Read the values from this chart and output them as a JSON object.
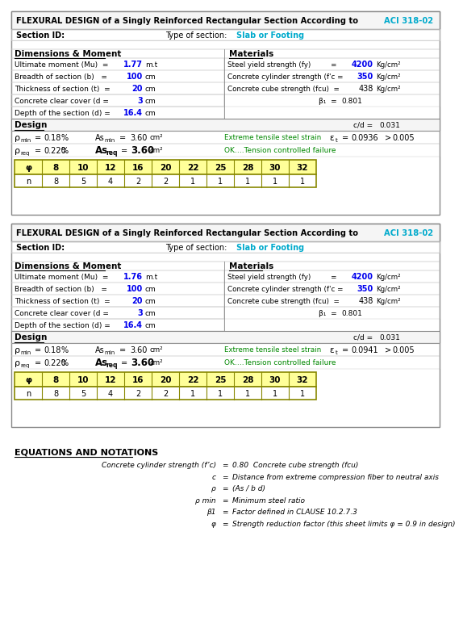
{
  "title_main": "FLEXURAL DESIGN of a Singly Reinforced Rectangular Section According to ",
  "title_aci": "ACI 318-02",
  "bg_color": "#ffffff",
  "blue_color": "#00AACC",
  "value_blue": "#0000EE",
  "green_color": "#008800",
  "table_yellow": "#FFFF99",
  "sections": [
    {
      "mu": "1.77",
      "b": "100",
      "t": "20",
      "cover": "3",
      "d": "16.4",
      "fy": "4200",
      "fc": "350",
      "fcu": "438",
      "beta1": "0.801",
      "cld": "0.031",
      "rho_min": "0.18",
      "as_min": "3.60",
      "strain": "0.0936",
      "rho_req": "0.220",
      "as_req": "3.60",
      "phi_vals": [
        "8",
        "10",
        "12",
        "16",
        "20",
        "22",
        "25",
        "28",
        "30",
        "32"
      ],
      "n_vals": [
        "8",
        "5",
        "4",
        "2",
        "2",
        "1",
        "1",
        "1",
        "1",
        "1"
      ]
    },
    {
      "mu": "1.76",
      "b": "100",
      "t": "20",
      "cover": "3",
      "d": "16.4",
      "fy": "4200",
      "fc": "350",
      "fcu": "438",
      "beta1": "0.801",
      "cld": "0.031",
      "rho_min": "0.18",
      "as_min": "3.60",
      "strain": "0.0941",
      "rho_req": "0.220",
      "as_req": "3.60",
      "phi_vals": [
        "8",
        "10",
        "12",
        "16",
        "20",
        "22",
        "25",
        "28",
        "30",
        "32"
      ],
      "n_vals": [
        "8",
        "5",
        "4",
        "2",
        "2",
        "1",
        "1",
        "1",
        "1",
        "1"
      ]
    }
  ],
  "eq_title": "EQUATIONS AND NOTATIONS",
  "eq_lines": [
    "Concrete cylinder strength (f’c) =  0.80  Concrete cube strength (fcu)",
    "c  =  Distance from extreme compression fiber to neutral axis",
    "ρ  =  (As / b d)",
    "ρ min  =  Minimum steel ratio",
    "β1  =  Factor defined in CLAUSE 10.2.7.3",
    "φ  =  Strength reduction factor (this sheet limits φ = 0.9 in design)"
  ]
}
